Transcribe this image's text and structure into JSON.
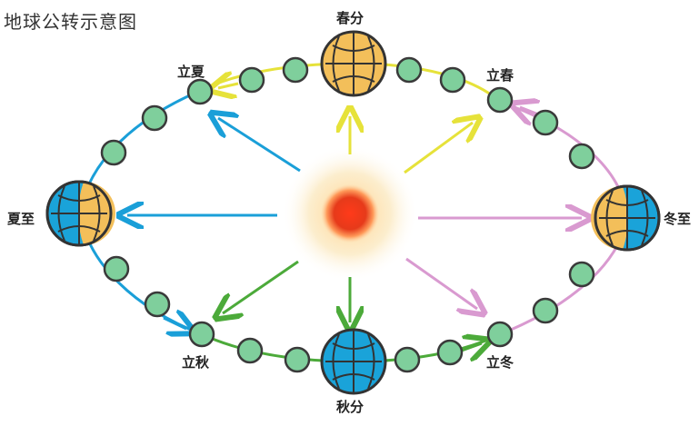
{
  "title": "地球公转示意图",
  "labels": {
    "spring_equinox": "春分",
    "start_spring": "立春",
    "winter_solstice": "冬至",
    "start_winter": "立冬",
    "autumn_equinox": "秋分",
    "start_autumn": "立秋",
    "summer_solstice": "夏至",
    "start_summer": "立夏"
  },
  "colors": {
    "spring": "#e6e23a",
    "summer": "#1a9fd8",
    "autumn": "#4caa3a",
    "winter": "#d99ad0",
    "small_earth": "#7fcf9c",
    "day_side": "#f3bf5a",
    "night_side": "#1aa3d9",
    "sun_core": "#e63a1a"
  }
}
